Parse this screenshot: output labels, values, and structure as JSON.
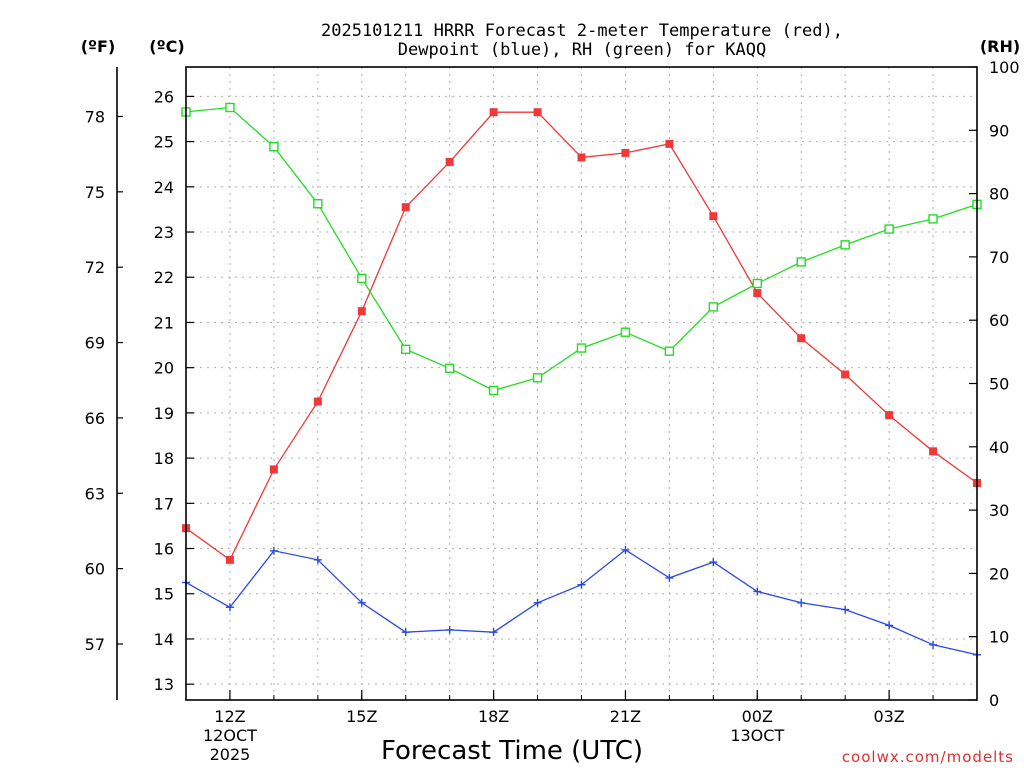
{
  "chart_data": {
    "type": "line",
    "title_line1": "2025101211 HRRR Forecast 2-meter Temperature (red),",
    "title_line2": "Dewpoint (blue), RH (green) for KAQQ",
    "xlabel": "Forecast Time (UTC)",
    "left_unit_f": "(ºF)",
    "left_unit_c": "(ºC)",
    "right_unit": "(RH)",
    "credit": "coolwx.com/modelts",
    "x_hours": [
      11,
      12,
      13,
      14,
      15,
      16,
      17,
      18,
      19,
      20,
      21,
      22,
      23,
      24,
      25,
      26,
      27,
      28,
      29
    ],
    "xlim": [
      11,
      29
    ],
    "x_ticks": [
      {
        "hour": 12,
        "label": "12Z",
        "sub1": "12OCT",
        "sub2": "2025"
      },
      {
        "hour": 15,
        "label": "15Z",
        "sub1": "",
        "sub2": ""
      },
      {
        "hour": 18,
        "label": "18Z",
        "sub1": "",
        "sub2": ""
      },
      {
        "hour": 21,
        "label": "21Z",
        "sub1": "",
        "sub2": ""
      },
      {
        "hour": 24,
        "label": "00Z",
        "sub1": "13OCT",
        "sub2": ""
      },
      {
        "hour": 27,
        "label": "03Z",
        "sub1": "",
        "sub2": ""
      }
    ],
    "celsius_axis": {
      "ylim": [
        12.65,
        26.65
      ],
      "ticks": [
        13,
        14,
        15,
        16,
        17,
        18,
        19,
        20,
        21,
        22,
        23,
        24,
        25,
        26
      ]
    },
    "fahrenheit_ticks": [
      57,
      60,
      63,
      66,
      69,
      72,
      75,
      78
    ],
    "rh_axis": {
      "ylim": [
        0,
        100
      ],
      "ticks": [
        0,
        10,
        20,
        30,
        40,
        50,
        60,
        70,
        80,
        90,
        100
      ]
    },
    "series": [
      {
        "name": "Temperature",
        "axis": "celsius",
        "color": "#f03838",
        "marker": "filled-square",
        "values": [
          16.45,
          15.75,
          17.75,
          19.25,
          21.25,
          23.55,
          24.55,
          25.65,
          25.65,
          24.65,
          24.75,
          24.95,
          23.35,
          21.65,
          20.65,
          19.85,
          18.95,
          18.15,
          17.45
        ]
      },
      {
        "name": "Dewpoint",
        "axis": "celsius",
        "color": "#2a48e6",
        "marker": "plus",
        "values": [
          15.25,
          14.7,
          15.95,
          15.75,
          14.8,
          14.15,
          14.2,
          14.15,
          14.8,
          15.2,
          15.97,
          15.35,
          15.7,
          15.05,
          14.8,
          14.65,
          14.3,
          13.87,
          13.65
        ]
      },
      {
        "name": "RH",
        "axis": "rh",
        "color": "#22dd22",
        "marker": "open-square",
        "values": [
          92.9,
          93.6,
          87.4,
          78.4,
          66.6,
          55.4,
          52.4,
          48.9,
          50.9,
          55.6,
          58.1,
          55.1,
          62.1,
          65.8,
          69.2,
          71.9,
          74.4,
          76.0,
          78.3
        ]
      }
    ]
  }
}
